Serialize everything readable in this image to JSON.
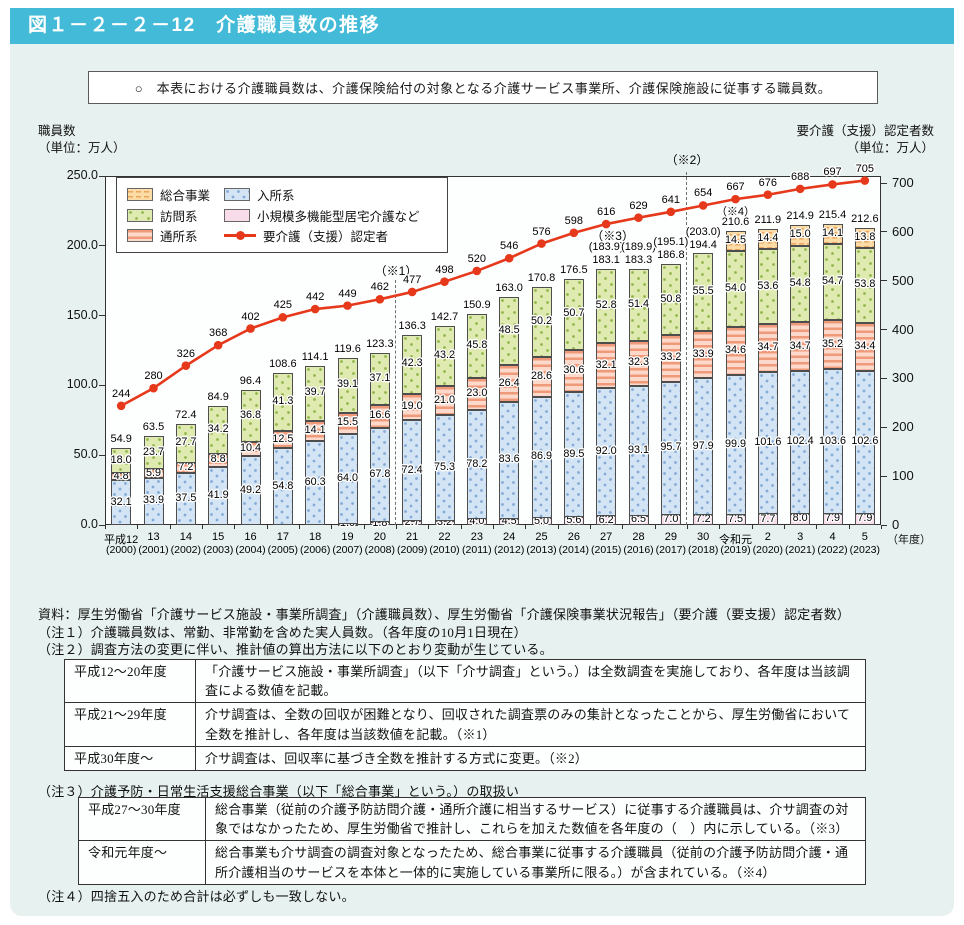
{
  "header": {
    "title": "図１－２－２－12　介護職員数の推移"
  },
  "note": {
    "text": "○　本表における介護職員数は、介護保険給付の対象となる介護サービス事業所、介護保険施設に従事する職員数。"
  },
  "axis": {
    "left_title_line1": "職員数",
    "left_title_line2": "（単位：万人）",
    "right_title_line1": "要介護（支援）認定者数",
    "right_title_line2": "（単位：万人）",
    "x_unit": "（年度）"
  },
  "legend": {
    "items": [
      {
        "label": "総合事業",
        "key": "sogo"
      },
      {
        "label": "訪問系",
        "key": "homon"
      },
      {
        "label": "通所系",
        "key": "tsusho"
      },
      {
        "label": "入所系",
        "key": "nyusho"
      },
      {
        "label": "小規模多機能型居宅介護など",
        "key": "shokibo"
      },
      {
        "label": "要介護（支援）認定者",
        "key": "line"
      }
    ]
  },
  "chart_data": {
    "type": "stacked-bar+line",
    "title": "介護職員数の推移",
    "categories_era": [
      "平成12",
      "13",
      "14",
      "15",
      "16",
      "17",
      "18",
      "19",
      "20",
      "21",
      "22",
      "23",
      "24",
      "25",
      "26",
      "27",
      "28",
      "29",
      "30",
      "令和元",
      "2",
      "3",
      "4",
      "5"
    ],
    "categories_year": [
      "(2000)",
      "(2001)",
      "(2002)",
      "(2003)",
      "(2004)",
      "(2005)",
      "(2006)",
      "(2007)",
      "(2008)",
      "(2009)",
      "(2010)",
      "(2011)",
      "(2012)",
      "(2013)",
      "(2014)",
      "(2015)",
      "(2016)",
      "(2017)",
      "(2018)",
      "(2019)",
      "(2020)",
      "(2021)",
      "(2022)",
      "(2023)"
    ],
    "stack_order": [
      "shokibo",
      "nyusho",
      "tsusho",
      "homon",
      "sogo"
    ],
    "series": {
      "shokibo": {
        "name": "小規模多機能型居宅介護など",
        "values": [
          null,
          null,
          null,
          null,
          null,
          null,
          null,
          "1.0",
          "1.8",
          "2.7",
          "3.2",
          "4.0",
          "4.5",
          "5.0",
          "5.6",
          "6.2",
          "6.5",
          "7.0",
          "7.2",
          "7.5",
          "7.7",
          "8.0",
          "7.9",
          "7.9"
        ]
      },
      "nyusho": {
        "name": "入所系",
        "values": [
          "32.1",
          "33.9",
          "37.5",
          "41.9",
          "49.2",
          "54.8",
          "60.3",
          "64.0",
          "67.8",
          "72.4",
          "75.3",
          "78.2",
          "83.6",
          "86.9",
          "89.5",
          "92.0",
          "93.1",
          "95.7",
          "97.9",
          "99.9",
          "101.6",
          "102.4",
          "103.6",
          "102.6"
        ]
      },
      "tsusho": {
        "name": "通所系",
        "values": [
          "4.8",
          "5.9",
          "7.2",
          "8.8",
          "10.4",
          "12.5",
          "14.1",
          "15.5",
          "16.6",
          "19.0",
          "21.0",
          "23.0",
          "26.4",
          "28.6",
          "30.6",
          "32.1",
          "32.3",
          "33.2",
          "33.9",
          "34.6",
          "34.7",
          "34.7",
          "35.2",
          "34.4"
        ]
      },
      "homon": {
        "name": "訪問系",
        "values": [
          "18.0",
          "23.7",
          "27.7",
          "34.2",
          "36.8",
          "41.3",
          "39.7",
          "39.1",
          "37.1",
          "42.3",
          "43.2",
          "45.8",
          "48.5",
          "50.2",
          "50.7",
          "52.8",
          "51.4",
          "50.8",
          "55.5",
          "54.0",
          "53.6",
          "54.8",
          "54.7",
          "53.8"
        ]
      },
      "sogo": {
        "name": "総合事業",
        "values": [
          null,
          null,
          null,
          null,
          null,
          null,
          null,
          null,
          null,
          null,
          null,
          null,
          null,
          null,
          null,
          null,
          null,
          null,
          null,
          "14.5",
          "14.4",
          "15.0",
          "14.1",
          "13.8"
        ]
      }
    },
    "totals": [
      "54.9",
      "63.5",
      "72.4",
      "84.9",
      "96.4",
      "108.6",
      "114.1",
      "119.6",
      "123.3",
      "136.3",
      "142.7",
      "150.9",
      "163.0",
      "170.8",
      "176.5",
      "183.1",
      "183.3",
      "186.8",
      "194.4",
      "210.6",
      "211.9",
      "214.9",
      "215.4",
      "212.6"
    ],
    "top_labels": [
      null,
      null,
      null,
      null,
      null,
      null,
      null,
      null,
      null,
      null,
      null,
      null,
      null,
      null,
      null,
      "(183.9)",
      "(189.9)",
      "(195.1)",
      "(203.0)",
      "（※4）",
      null,
      null,
      null,
      null
    ],
    "line": {
      "name": "要介護（支援）認定者",
      "values": [
        244,
        280,
        326,
        368,
        402,
        425,
        442,
        449,
        462,
        477,
        498,
        520,
        546,
        576,
        598,
        616,
        629,
        641,
        654,
        667,
        676,
        688,
        697,
        705
      ]
    },
    "left_axis": {
      "ticks": [
        "0.0",
        "50.0",
        "100.0",
        "150.0",
        "200.0",
        "250.0"
      ],
      "max": 250
    },
    "right_axis": {
      "ticks": [
        "0",
        "100",
        "200",
        "300",
        "400",
        "500",
        "600",
        "700"
      ],
      "max": 700
    },
    "annotations": {
      "a1": "（※1）",
      "a2": "（※2）",
      "a3": "（※3）"
    },
    "legend_position": "top-left-inside",
    "grid": false
  },
  "footnotes": {
    "source": "資料：厚生労働省「介護サービス施設・事業所調査」（介護職員数）、厚生労働省「介護保険事業状況報告」（要介護（要支援）認定者数）",
    "note1": "（注１）介護職員数は、常勤、非常勤を含めた実人員数。（各年度の10月1日現在）",
    "note2": "（注２）調査方法の変更に伴い、推計値の算出方法に以下のとおり変動が生じている。",
    "table1": [
      {
        "period": "平成12～20年度",
        "text": "「介護サービス施設・事業所調査」（以下「介サ調査」という。）は全数調査を実施しており、各年度は当該調査による数値を記載。"
      },
      {
        "period": "平成21～29年度",
        "text": "介サ調査は、全数の回収が困難となり、回収された調査票のみの集計となったことから、厚生労働省において全数を推計し、各年度は当該数値を記載。（※1）"
      },
      {
        "period": "平成30年度～",
        "text": "介サ調査は、回収率に基づき全数を推計する方式に変更。（※2）"
      }
    ],
    "note3": "（注３）介護予防・日常生活支援総合事業（以下「総合事業」という。）の取扱い",
    "table2": [
      {
        "period": "平成27～30年度",
        "text": "総合事業（従前の介護予防訪問介護・通所介護に相当するサービス）に従事する介護職員は、介サ調査の対象ではなかったため、厚生労働省で推計し、これらを加えた数値を各年度の（　）内に示している。（※3）"
      },
      {
        "period": "令和元年度～",
        "text": "総合事業も介サ調査の調査対象となったため、総合事業に従事する介護職員（従前の介護予防訪問介護・通所介護相当のサービスを本体と一体的に実施している事業所に限る。）が含まれている。（※4）"
      }
    ],
    "note4": "（注４）四捨五入のため合計は必ずしも一致しない。"
  }
}
